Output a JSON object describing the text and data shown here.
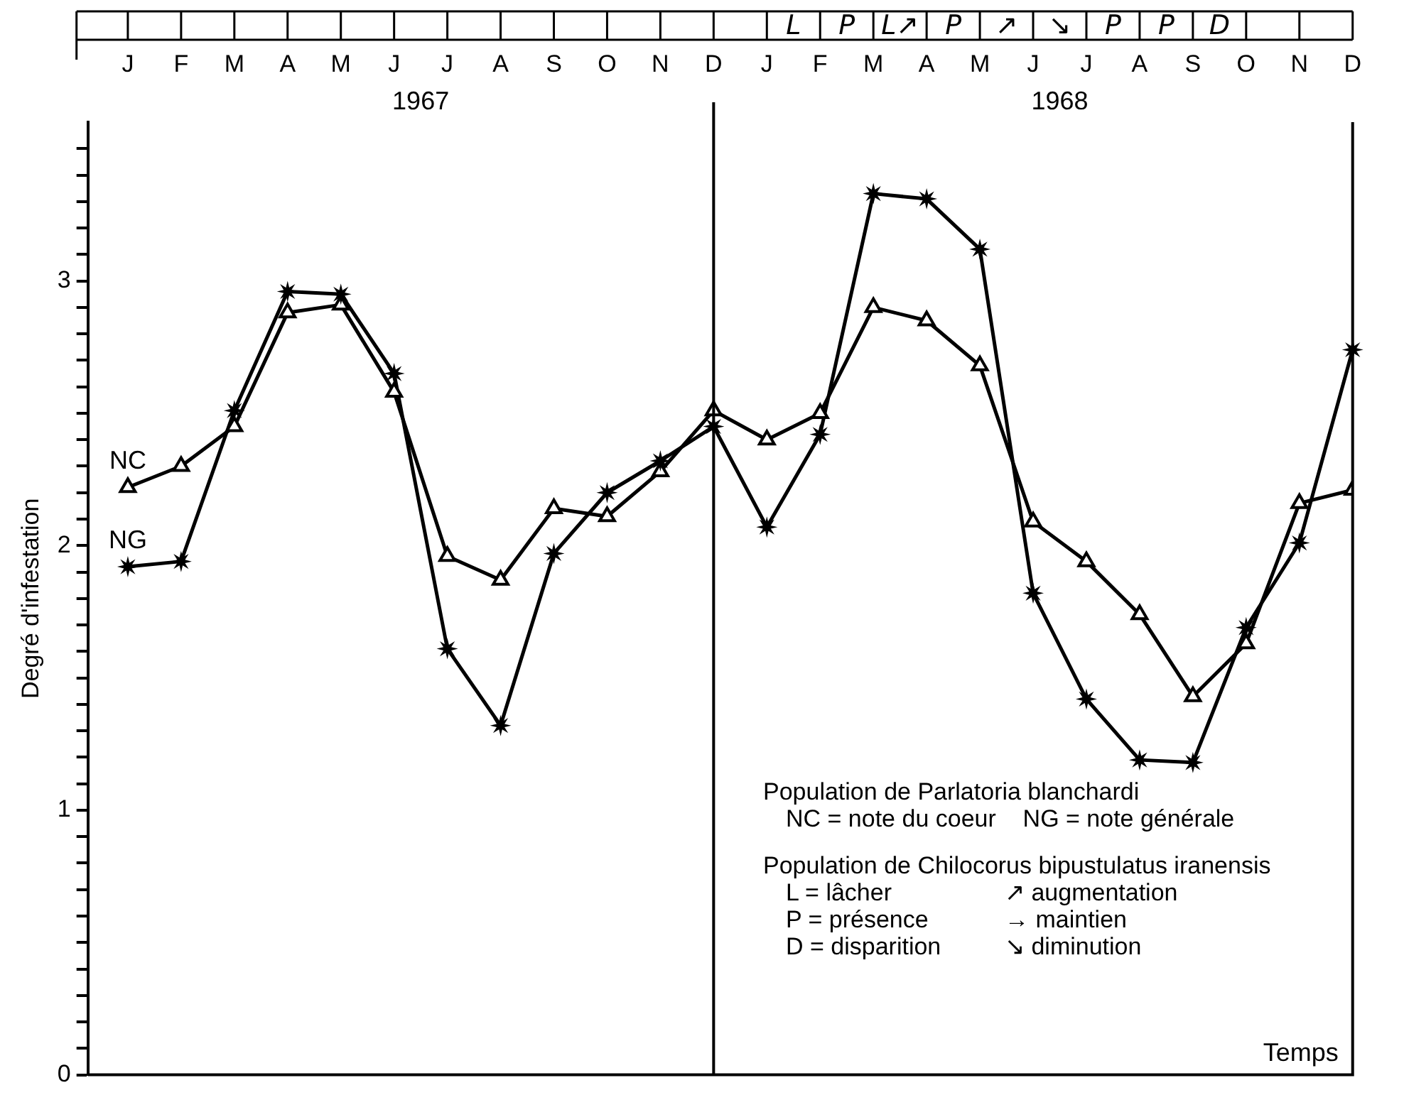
{
  "chart_data": {
    "type": "line",
    "ylabel": "Degré d'infestation",
    "xlabel": "Temps",
    "categories": [
      "J",
      "F",
      "M",
      "A",
      "M",
      "J",
      "J",
      "A",
      "S",
      "O",
      "N",
      "D",
      "J",
      "F",
      "M",
      "A",
      "M",
      "J",
      "J",
      "A",
      "S",
      "O",
      "N",
      "D"
    ],
    "series": [
      {
        "name": "NC",
        "color": "#000000",
        "marker": "triangle",
        "values": [
          2.22,
          2.3,
          2.45,
          2.88,
          2.91,
          2.58,
          1.96,
          1.87,
          2.14,
          2.11,
          2.28,
          2.51,
          2.4,
          2.5,
          2.9,
          2.85,
          2.68,
          2.09,
          1.94,
          1.74,
          1.43,
          1.63,
          2.16,
          2.21
        ]
      },
      {
        "name": "NG",
        "color": "#000000",
        "marker": "star",
        "values": [
          1.92,
          1.94,
          2.51,
          2.96,
          2.95,
          2.65,
          1.61,
          1.32,
          1.97,
          2.2,
          2.32,
          2.45,
          2.07,
          2.42,
          3.33,
          3.31,
          3.12,
          1.82,
          1.42,
          1.19,
          1.18,
          1.69,
          2.01,
          2.74
        ]
      }
    ],
    "ylim": [
      0,
      3.6
    ],
    "yticks": [
      0,
      {
        "value": 0.1,
        "label": null
      },
      {
        "value": 0.2,
        "label": null
      },
      {
        "value": 0.3,
        "label": null
      },
      {
        "value": 0.4,
        "label": null
      },
      {
        "value": 0.5,
        "label": null
      },
      {
        "value": 0.6,
        "label": null
      },
      {
        "value": 0.7,
        "label": null
      },
      {
        "value": 0.8,
        "label": null
      },
      {
        "value": 0.9,
        "label": null
      },
      1,
      {
        "value": 1.1,
        "label": null
      },
      {
        "value": 1.2,
        "label": null
      },
      {
        "value": 1.3,
        "label": null
      },
      {
        "value": 1.4,
        "label": null
      },
      {
        "value": 1.5,
        "label": null
      },
      {
        "value": 1.6,
        "label": null
      },
      {
        "value": 1.7,
        "label": null
      },
      {
        "value": 1.8,
        "label": null
      },
      {
        "value": 1.9,
        "label": null
      },
      2,
      {
        "value": 2.1,
        "label": null
      },
      {
        "value": 2.2,
        "label": null
      },
      {
        "value": 2.3,
        "label": null
      },
      {
        "value": 2.4,
        "label": null
      },
      {
        "value": 2.5,
        "label": null
      },
      {
        "value": 2.6,
        "label": null
      },
      {
        "value": 2.7,
        "label": null
      },
      {
        "value": 2.8,
        "label": null
      },
      {
        "value": 2.9,
        "label": null
      },
      3,
      {
        "value": 3.1,
        "label": null
      },
      {
        "value": 3.2,
        "label": null
      },
      {
        "value": 3.3,
        "label": null
      },
      {
        "value": 3.4,
        "label": null
      },
      {
        "value": 3.5,
        "label": null
      }
    ],
    "ref_lines": [
      {
        "axis": "x",
        "value": "D",
        "color": "#000000"
      }
    ],
    "grid": false,
    "legend": false,
    "line_style": "solid",
    "annotations": [
      "1967",
      "1968",
      "L",
      "P",
      "L↗",
      "P",
      "↗",
      "↘",
      "P",
      "P",
      "D",
      "Population de Parlatoria blanchardi",
      "NC = note du coeur    NG = note générale",
      "Population de Chilocorus bipustulatus iranensis",
      "L = lâcher",
      "P = présence",
      "D = disparition",
      "↗ augmentation",
      "→ maintien",
      "↘ diminution"
    ]
  }
}
